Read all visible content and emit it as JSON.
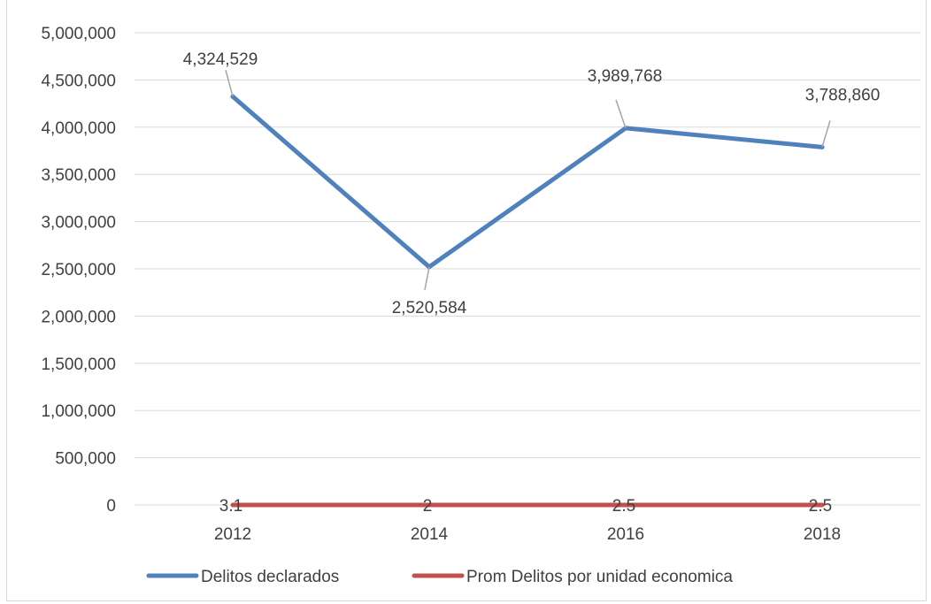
{
  "chart_data": {
    "type": "line",
    "title": "",
    "categories": [
      "2012",
      "2014",
      "2016",
      "2018"
    ],
    "ylim": [
      0,
      5000000
    ],
    "ytick_labels": [
      "0",
      "500,000",
      "1,000,000",
      "1,500,000",
      "2,000,000",
      "2,500,000",
      "3,000,000",
      "3,500,000",
      "4,000,000",
      "4,500,000",
      "5,000,000"
    ],
    "grid": true,
    "legend_position": "bottom",
    "series": [
      {
        "name": "Delitos declarados",
        "color": "#4f81bd",
        "values": [
          4324529,
          2520584,
          3989768,
          3788860
        ],
        "labels": [
          "4,324,529",
          "2,520,584",
          "3,989,768",
          "3,788,860"
        ]
      },
      {
        "name": "Prom Delitos por unidad economica",
        "color": "#c0504d",
        "values": [
          3.1,
          2,
          2.5,
          2.5
        ],
        "labels": [
          "3.1",
          "2",
          "2.5",
          "2.5"
        ]
      }
    ]
  }
}
